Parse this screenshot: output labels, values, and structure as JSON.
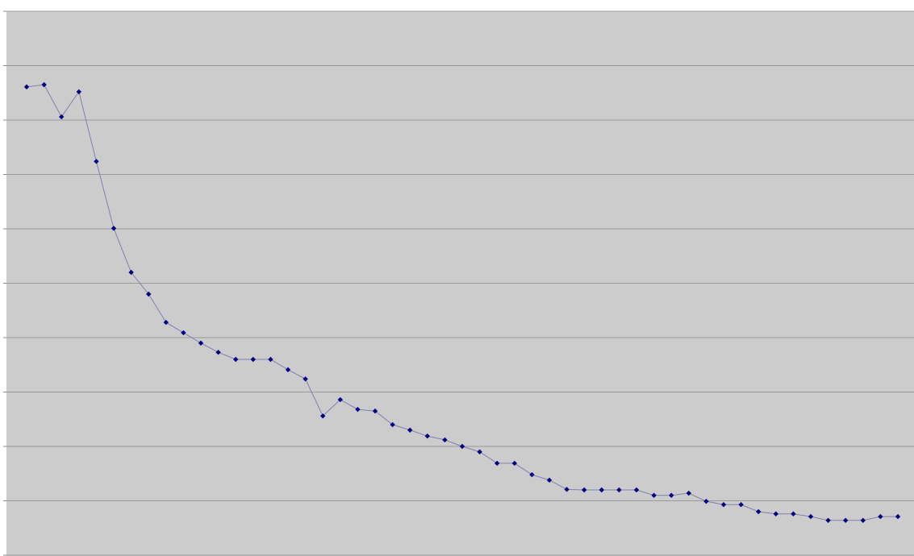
{
  "chart_data": {
    "type": "line",
    "ylim": [
      0,
      10
    ],
    "yticks": [
      0,
      1,
      2,
      3,
      4,
      5,
      6,
      7,
      8,
      9,
      10
    ],
    "grid": true,
    "series": [
      {
        "color": "#000080",
        "line_color": "#8080b0",
        "values": [
          8.61,
          8.65,
          8.06,
          8.52,
          7.24,
          6.01,
          5.2,
          4.8,
          4.28,
          4.09,
          3.9,
          3.73,
          3.6,
          3.6,
          3.6,
          3.41,
          3.24,
          2.56,
          2.86,
          2.68,
          2.65,
          2.4,
          2.3,
          2.19,
          2.12,
          2.0,
          1.9,
          1.69,
          1.69,
          1.48,
          1.38,
          1.21,
          1.2,
          1.2,
          1.2,
          1.2,
          1.1,
          1.1,
          1.14,
          0.99,
          0.93,
          0.93,
          0.8,
          0.76,
          0.76,
          0.71,
          0.64,
          0.64,
          0.64,
          0.71,
          0.71
        ]
      }
    ]
  }
}
